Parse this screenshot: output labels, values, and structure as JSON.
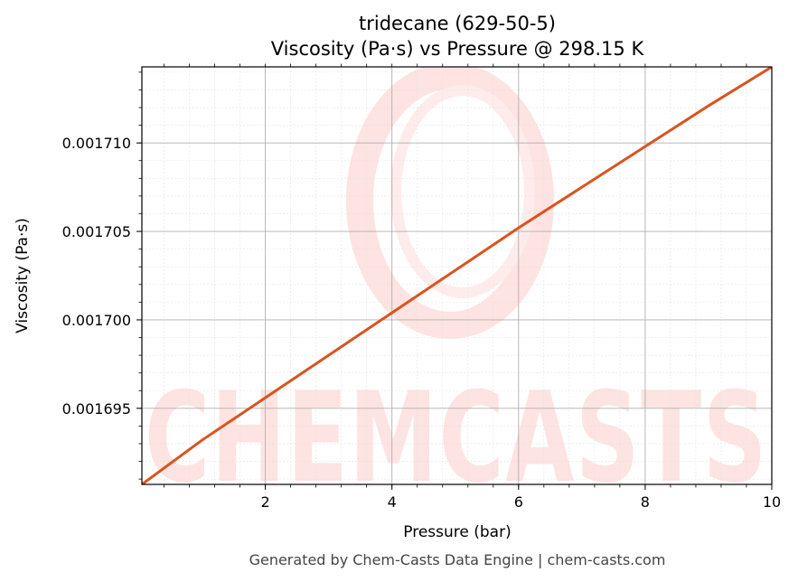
{
  "chart_data": {
    "type": "line",
    "title": "tridecane (629-50-5)",
    "subtitle": "Viscosity (Pa·s) vs Pressure @ 298.15 K",
    "xlabel": "Pressure (bar)",
    "ylabel": "Viscosity (Pa·s)",
    "xlim": [
      0.05,
      10
    ],
    "ylim": [
      0.0016907,
      0.0017143
    ],
    "x_ticks": [
      2,
      4,
      6,
      8,
      10
    ],
    "x_tick_labels": [
      "2",
      "4",
      "6",
      "8",
      "10"
    ],
    "y_ticks": [
      0.001695,
      0.0017,
      0.001705,
      0.00171
    ],
    "y_tick_labels": [
      "0.001695",
      "0.001700",
      "0.001705",
      "0.001710"
    ],
    "grid": true,
    "series": [
      {
        "color": "#d9541e",
        "x": [
          0.05,
          1,
          2,
          3,
          4,
          5,
          6,
          7,
          8,
          9,
          10
        ],
        "y": [
          0.0016907,
          0.0016932,
          0.0016956,
          0.001698,
          0.0017004,
          0.0017028,
          0.0017052,
          0.0017075,
          0.0017098,
          0.0017121,
          0.0017143
        ]
      }
    ]
  },
  "watermark": {
    "text": "CHEMCASTS",
    "color": "#fde3e1"
  },
  "footer": "Generated by Chem-Casts Data Engine | chem-casts.com"
}
